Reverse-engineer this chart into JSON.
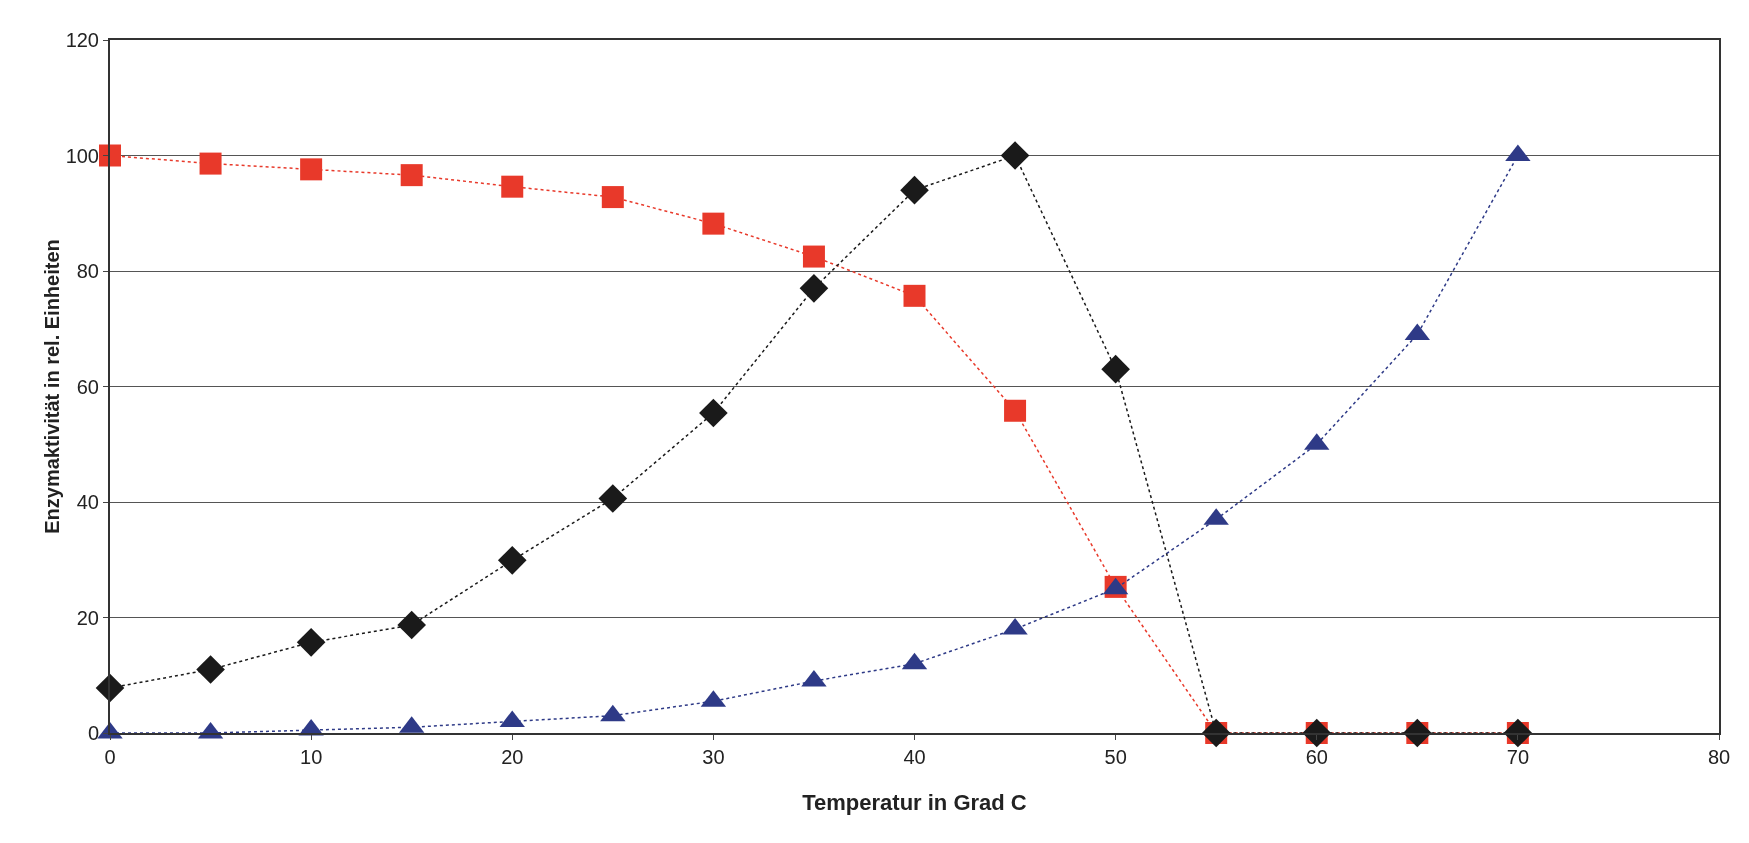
{
  "chart_data": {
    "type": "line",
    "xlabel": "Temperatur in Grad C",
    "ylabel": "Enzymaktivität in rel. Einheiten",
    "x": [
      0,
      5,
      10,
      15,
      20,
      25,
      30,
      35,
      40,
      45,
      50,
      55,
      60,
      65,
      70
    ],
    "series": [
      {
        "color": "#e8392a",
        "marker": "square",
        "values": [
          100,
          98.6,
          97.6,
          96.6,
          94.6,
          92.8,
          88.2,
          82.5,
          75.7,
          55.8,
          25.3,
          0,
          0,
          0,
          0
        ]
      },
      {
        "color": "#1a1a1a",
        "marker": "diamond",
        "values": [
          7.8,
          11,
          15.7,
          18.7,
          29.9,
          40.6,
          55.4,
          77,
          94,
          100,
          63,
          0,
          0,
          0,
          0
        ]
      },
      {
        "color": "#2e3a87",
        "marker": "triangle",
        "values": [
          0,
          0,
          0.5,
          1,
          2,
          3,
          5.5,
          9,
          12,
          18,
          25,
          37,
          50,
          69,
          100
        ]
      }
    ],
    "xlim": [
      0,
      80
    ],
    "xticks": [
      0,
      10,
      20,
      30,
      40,
      50,
      60,
      70,
      80
    ],
    "ylim": [
      0,
      120
    ],
    "yticks": [
      0,
      20,
      40,
      60,
      80,
      100,
      120
    ],
    "grid": "y",
    "line_style": "dotted"
  }
}
